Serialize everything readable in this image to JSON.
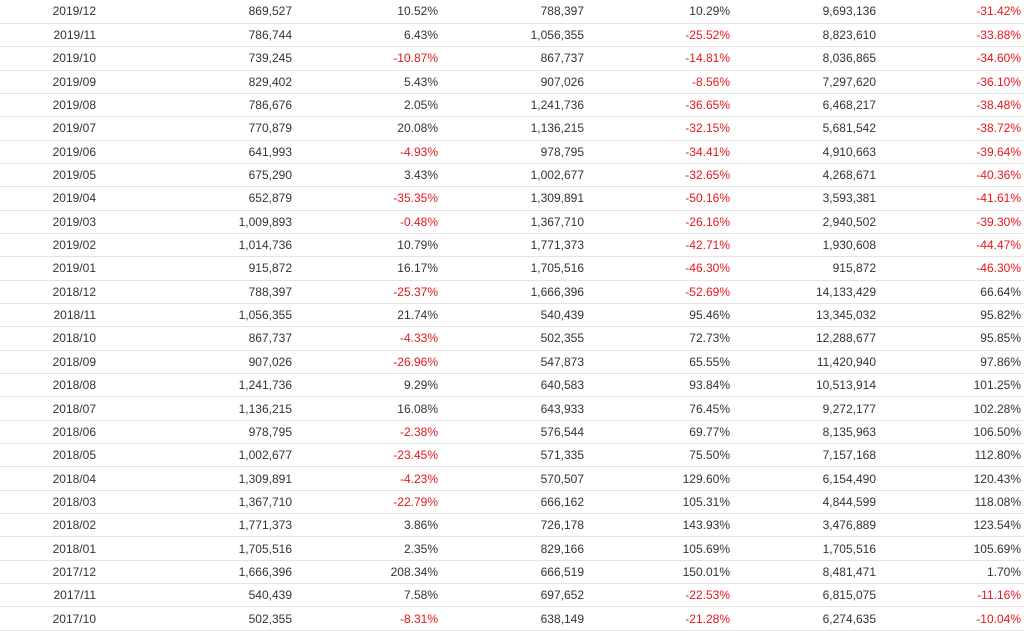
{
  "colors": {
    "negative": "#e8161b",
    "text": "#333333",
    "divider": "#e4e4e4"
  },
  "rows": [
    [
      "2019/12",
      "869,527",
      "10.52%",
      "788,397",
      "10.29%",
      "9,693,136",
      "-31.42%"
    ],
    [
      "2019/11",
      "786,744",
      "6.43%",
      "1,056,355",
      "-25.52%",
      "8,823,610",
      "-33.88%"
    ],
    [
      "2019/10",
      "739,245",
      "-10.87%",
      "867,737",
      "-14.81%",
      "8,036,865",
      "-34.60%"
    ],
    [
      "2019/09",
      "829,402",
      "5.43%",
      "907,026",
      "-8.56%",
      "7,297,620",
      "-36.10%"
    ],
    [
      "2019/08",
      "786,676",
      "2.05%",
      "1,241,736",
      "-36.65%",
      "6,468,217",
      "-38.48%"
    ],
    [
      "2019/07",
      "770,879",
      "20.08%",
      "1,136,215",
      "-32.15%",
      "5,681,542",
      "-38.72%"
    ],
    [
      "2019/06",
      "641,993",
      "-4.93%",
      "978,795",
      "-34.41%",
      "4,910,663",
      "-39.64%"
    ],
    [
      "2019/05",
      "675,290",
      "3.43%",
      "1,002,677",
      "-32.65%",
      "4,268,671",
      "-40.36%"
    ],
    [
      "2019/04",
      "652,879",
      "-35.35%",
      "1,309,891",
      "-50.16%",
      "3,593,381",
      "-41.61%"
    ],
    [
      "2019/03",
      "1,009,893",
      "-0.48%",
      "1,367,710",
      "-26.16%",
      "2,940,502",
      "-39.30%"
    ],
    [
      "2019/02",
      "1,014,736",
      "10.79%",
      "1,771,373",
      "-42.71%",
      "1,930,608",
      "-44.47%"
    ],
    [
      "2019/01",
      "915,872",
      "16.17%",
      "1,705,516",
      "-46.30%",
      "915,872",
      "-46.30%"
    ],
    [
      "2018/12",
      "788,397",
      "-25.37%",
      "1,666,396",
      "-52.69%",
      "14,133,429",
      "66.64%"
    ],
    [
      "2018/11",
      "1,056,355",
      "21.74%",
      "540,439",
      "95.46%",
      "13,345,032",
      "95.82%"
    ],
    [
      "2018/10",
      "867,737",
      "-4.33%",
      "502,355",
      "72.73%",
      "12,288,677",
      "95.85%"
    ],
    [
      "2018/09",
      "907,026",
      "-26.96%",
      "547,873",
      "65.55%",
      "11,420,940",
      "97.86%"
    ],
    [
      "2018/08",
      "1,241,736",
      "9.29%",
      "640,583",
      "93.84%",
      "10,513,914",
      "101.25%"
    ],
    [
      "2018/07",
      "1,136,215",
      "16.08%",
      "643,933",
      "76.45%",
      "9,272,177",
      "102.28%"
    ],
    [
      "2018/06",
      "978,795",
      "-2.38%",
      "576,544",
      "69.77%",
      "8,135,963",
      "106.50%"
    ],
    [
      "2018/05",
      "1,002,677",
      "-23.45%",
      "571,335",
      "75.50%",
      "7,157,168",
      "112.80%"
    ],
    [
      "2018/04",
      "1,309,891",
      "-4.23%",
      "570,507",
      "129.60%",
      "6,154,490",
      "120.43%"
    ],
    [
      "2018/03",
      "1,367,710",
      "-22.79%",
      "666,162",
      "105.31%",
      "4,844,599",
      "118.08%"
    ],
    [
      "2018/02",
      "1,771,373",
      "3.86%",
      "726,178",
      "143.93%",
      "3,476,889",
      "123.54%"
    ],
    [
      "2018/01",
      "1,705,516",
      "2.35%",
      "829,166",
      "105.69%",
      "1,705,516",
      "105.69%"
    ],
    [
      "2017/12",
      "1,666,396",
      "208.34%",
      "666,519",
      "150.01%",
      "8,481,471",
      "1.70%"
    ],
    [
      "2017/11",
      "540,439",
      "7.58%",
      "697,652",
      "-22.53%",
      "6,815,075",
      "-11.16%"
    ],
    [
      "2017/10",
      "502,355",
      "-8.31%",
      "638,149",
      "-21.28%",
      "6,274,635",
      "-10.04%"
    ]
  ]
}
